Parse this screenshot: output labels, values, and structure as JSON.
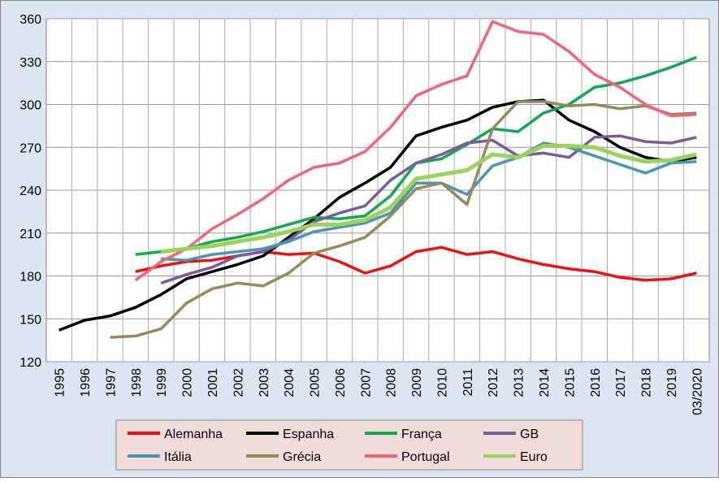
{
  "chart_data": {
    "type": "line",
    "categories": [
      "1995",
      "1996",
      "1997",
      "1998",
      "1999",
      "2000",
      "2001",
      "2002",
      "2003",
      "2004",
      "2005",
      "2006",
      "2007",
      "2008",
      "2009",
      "2010",
      "2011",
      "2012",
      "2013",
      "2014",
      "2015",
      "2016",
      "2017",
      "2018",
      "2019",
      "03/2020"
    ],
    "ylim": [
      120,
      360
    ],
    "yticks": [
      120,
      150,
      180,
      210,
      240,
      270,
      300,
      330,
      360
    ],
    "grid": true,
    "series": [
      {
        "name": "Alemanha",
        "color": "#ee1111",
        "values": [
          null,
          null,
          null,
          183,
          187,
          190,
          191,
          194,
          197,
          195,
          196,
          190,
          182,
          187,
          197,
          200,
          195,
          197,
          192,
          188,
          185,
          183,
          179,
          177,
          178,
          182
        ]
      },
      {
        "name": "Espanha",
        "color": "#000000",
        "values": [
          142,
          149,
          152,
          158,
          167,
          178,
          183,
          188,
          194,
          207,
          220,
          235,
          245,
          256,
          278,
          284,
          289,
          298,
          302,
          303,
          289,
          281,
          270,
          263,
          260,
          263
        ]
      },
      {
        "name": "França",
        "color": "#10a850",
        "values": [
          null,
          null,
          null,
          195,
          197,
          199,
          204,
          207,
          211,
          216,
          221,
          220,
          222,
          236,
          259,
          262,
          272,
          283,
          281,
          294,
          300,
          312,
          315,
          320,
          326,
          333
        ]
      },
      {
        "name": "GB",
        "color": "#7a5c9c",
        "values": [
          null,
          null,
          null,
          null,
          175,
          181,
          186,
          194,
          197,
          205,
          218,
          224,
          229,
          247,
          259,
          265,
          273,
          275,
          264,
          266,
          263,
          277,
          278,
          274,
          273,
          277
        ]
      },
      {
        "name": "Itália",
        "color": "#4a94b4",
        "values": [
          null,
          null,
          null,
          null,
          192,
          191,
          195,
          197,
          199,
          204,
          211,
          214,
          217,
          224,
          245,
          245,
          237,
          257,
          263,
          273,
          270,
          264,
          258,
          252,
          259,
          260
        ]
      },
      {
        "name": "Grécia",
        "color": "#948a5c",
        "values": [
          null,
          null,
          137,
          138,
          143,
          161,
          171,
          175,
          173,
          182,
          196,
          201,
          207,
          222,
          241,
          245,
          230,
          283,
          302,
          302,
          299,
          300,
          297,
          299,
          293,
          294
        ]
      },
      {
        "name": "Portugal",
        "color": "#ee6677",
        "values": [
          null,
          null,
          null,
          177,
          190,
          199,
          213,
          223,
          234,
          247,
          256,
          259,
          267,
          284,
          306,
          314,
          320,
          358,
          351,
          349,
          337,
          321,
          312,
          300,
          292,
          293
        ]
      },
      {
        "name": "Euro",
        "color": "#99d35a",
        "values": [
          null,
          null,
          null,
          null,
          197,
          199,
          201,
          204,
          207,
          211,
          216,
          216,
          219,
          228,
          248,
          251,
          254,
          265,
          263,
          271,
          271,
          270,
          264,
          260,
          261,
          265
        ]
      }
    ]
  }
}
